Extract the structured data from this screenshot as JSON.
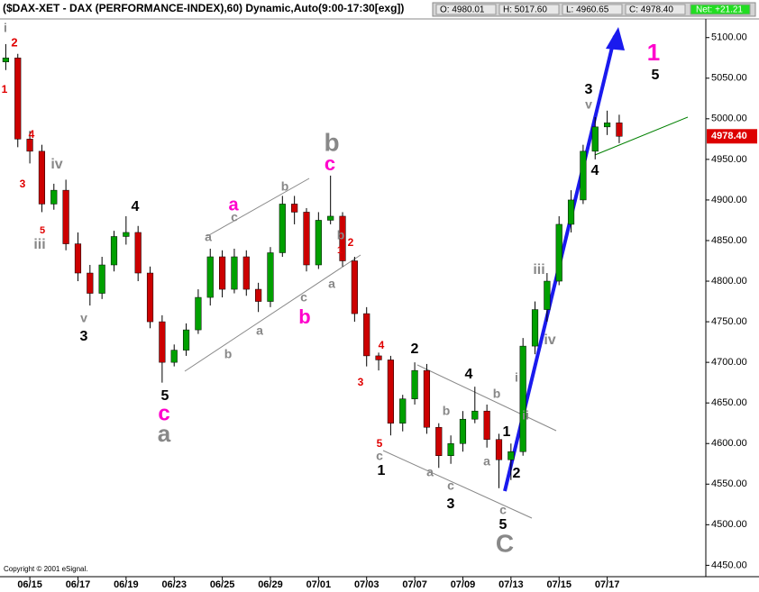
{
  "chart_data": {
    "type": "candlestick",
    "title": "($DAX-XET - DAX (PERFORMANCE-INDEX),60) Dynamic,Auto(9:00-17:30[exg])",
    "quote": {
      "open": "O: 4980.01",
      "high": "H: 5017.60",
      "low": "L: 4960.65",
      "close": "C: 4978.40",
      "net": "Net: +21.21"
    },
    "copyright": "Copyright © 2001 eSignal.",
    "last_price": {
      "value": 4978.4,
      "label": "4978.40"
    },
    "up_color": "#00a000",
    "down_color": "#cc0000",
    "wick_color": "#000000",
    "x": [
      -1,
      -0.5,
      0,
      0.5,
      1,
      1.5,
      2,
      2.5,
      3,
      3.5,
      4,
      4.5,
      5,
      5.5,
      6,
      6.5,
      7,
      7.5,
      8,
      8.5,
      9,
      9.5,
      10,
      10.5,
      11,
      11.5,
      12,
      12.5,
      13,
      13.5,
      14,
      14.5,
      15,
      15.5,
      16,
      16.5,
      17,
      17.5,
      18,
      18.5,
      19,
      19.5,
      20,
      20.5,
      21,
      21.5,
      22,
      22.5,
      23,
      23.5,
      24,
      24.5
    ],
    "open": [
      5070,
      5075,
      4975,
      4960,
      4895,
      4912,
      4846,
      4810,
      4785,
      4820,
      4855,
      4860,
      4810,
      4750,
      4700,
      4715,
      4740,
      4780,
      4830,
      4790,
      4830,
      4790,
      4775,
      4835,
      4895,
      4885,
      4820,
      4875,
      4880,
      4825,
      4760,
      4708,
      4703,
      4625,
      4655,
      4690,
      4620,
      4585,
      4600,
      4630,
      4640,
      4605,
      4580,
      4590,
      4720,
      4765,
      4800,
      4870,
      4900,
      4960,
      4990,
      4995
    ],
    "high": [
      5092,
      5080,
      4985,
      4968,
      4920,
      4925,
      4860,
      4820,
      4830,
      4862,
      4880,
      4868,
      4818,
      4758,
      4722,
      4748,
      4790,
      4840,
      4838,
      4840,
      4838,
      4798,
      4842,
      4905,
      4905,
      4890,
      4885,
      4930,
      4885,
      4830,
      4768,
      4712,
      4708,
      4660,
      4700,
      4698,
      4625,
      4610,
      4640,
      4670,
      4648,
      4612,
      4600,
      4730,
      4775,
      4810,
      4880,
      4912,
      4968,
      5002,
      5010,
      5005
    ],
    "low": [
      5060,
      4965,
      4945,
      4885,
      4888,
      4838,
      4800,
      4770,
      4778,
      4812,
      4845,
      4800,
      4742,
      4675,
      4695,
      4708,
      4735,
      4770,
      4780,
      4785,
      4782,
      4762,
      4768,
      4830,
      4870,
      4812,
      4815,
      4870,
      4818,
      4750,
      4695,
      4690,
      4610,
      4615,
      4648,
      4612,
      4570,
      4575,
      4590,
      4625,
      4595,
      4545,
      4555,
      4585,
      4710,
      4750,
      4795,
      4860,
      4895,
      4950,
      4980,
      4970
    ],
    "close": [
      5075,
      4975,
      4960,
      4895,
      4912,
      4846,
      4810,
      4785,
      4820,
      4855,
      4860,
      4810,
      4750,
      4700,
      4715,
      4740,
      4780,
      4830,
      4790,
      4830,
      4790,
      4775,
      4835,
      4895,
      4885,
      4820,
      4875,
      4880,
      4825,
      4760,
      4708,
      4703,
      4625,
      4655,
      4690,
      4620,
      4585,
      4600,
      4630,
      4640,
      4605,
      4580,
      4590,
      4720,
      4765,
      4800,
      4870,
      4900,
      4960,
      4990,
      4995,
      4978.4
    ],
    "xlim": [
      -1.24,
      28.1
    ],
    "xticks": [
      {
        "value": 0,
        "label": "06/15"
      },
      {
        "value": 2,
        "label": "06/17"
      },
      {
        "value": 4,
        "label": "06/19"
      },
      {
        "value": 6,
        "label": "06/23"
      },
      {
        "value": 8,
        "label": "06/25"
      },
      {
        "value": 10,
        "label": "06/29"
      },
      {
        "value": 12,
        "label": "07/01"
      },
      {
        "value": 14,
        "label": "07/03"
      },
      {
        "value": 16,
        "label": "07/07"
      },
      {
        "value": 18,
        "label": "07/09"
      },
      {
        "value": 20,
        "label": "07/13"
      },
      {
        "value": 22,
        "label": "07/15"
      },
      {
        "value": 24,
        "label": "07/17"
      }
    ],
    "ylim": [
      4436,
      5123
    ],
    "yticks": [
      {
        "value": 4450,
        "label": "4450.00"
      },
      {
        "value": 4500,
        "label": "4500.00"
      },
      {
        "value": 4550,
        "label": "4550.00"
      },
      {
        "value": 4600,
        "label": "4600.00"
      },
      {
        "value": 4650,
        "label": "4650.00"
      },
      {
        "value": 4700,
        "label": "4700.00"
      },
      {
        "value": 4750,
        "label": "4750.00"
      },
      {
        "value": 4800,
        "label": "4800.00"
      },
      {
        "value": 4850,
        "label": "4850.00"
      },
      {
        "value": 4900,
        "label": "4900.00"
      },
      {
        "value": 4950,
        "label": "4950.00"
      },
      {
        "value": 5000,
        "label": "5000.00"
      },
      {
        "value": 5050,
        "label": "5050.00"
      },
      {
        "value": 5100,
        "label": "5100.00"
      }
    ],
    "annotations": [
      {
        "text": "i",
        "color": "#888888"
      },
      {
        "text": "2",
        "color": "#e00000"
      },
      {
        "text": "1",
        "color": "#e00000"
      },
      {
        "text": "4",
        "color": "#e00000"
      },
      {
        "text": "3",
        "color": "#e00000"
      },
      {
        "text": "iv",
        "color": "#888888"
      },
      {
        "text": "5",
        "color": "#e00000"
      },
      {
        "text": "iii",
        "color": "#888888"
      },
      {
        "text": "4",
        "color": "#000000"
      },
      {
        "text": "v",
        "color": "#888888"
      },
      {
        "text": "3",
        "color": "#000000"
      },
      {
        "text": "5",
        "color": "#000000"
      },
      {
        "text": "c",
        "color": "#ff00cc"
      },
      {
        "text": "a",
        "color": "#888888"
      },
      {
        "text": "a",
        "color": "#ff00cc"
      },
      {
        "text": "c",
        "color": "#888888"
      },
      {
        "text": "a",
        "color": "#888888"
      },
      {
        "text": "b",
        "color": "#888888"
      },
      {
        "text": "b",
        "color": "#888888"
      },
      {
        "text": "a",
        "color": "#888888"
      },
      {
        "text": "c",
        "color": "#888888"
      },
      {
        "text": "b",
        "color": "#ff00cc"
      },
      {
        "text": "b",
        "color": "#888888"
      },
      {
        "text": "c",
        "color": "#ff00cc"
      },
      {
        "text": "b",
        "color": "#888888"
      },
      {
        "text": "2",
        "color": "#e00000"
      },
      {
        "text": "1",
        "color": "#e00000"
      },
      {
        "text": "a",
        "color": "#888888"
      },
      {
        "text": "4",
        "color": "#e00000"
      },
      {
        "text": "3",
        "color": "#e00000"
      },
      {
        "text": "5",
        "color": "#e00000"
      },
      {
        "text": "c",
        "color": "#888888"
      },
      {
        "text": "1",
        "color": "#000000"
      },
      {
        "text": "2",
        "color": "#000000"
      },
      {
        "text": "4",
        "color": "#000000"
      },
      {
        "text": "b",
        "color": "#888888"
      },
      {
        "text": "b",
        "color": "#888888"
      },
      {
        "text": "a",
        "color": "#888888"
      },
      {
        "text": "c",
        "color": "#888888"
      },
      {
        "text": "3",
        "color": "#000000"
      },
      {
        "text": "a",
        "color": "#888888"
      },
      {
        "text": "1",
        "color": "#000000"
      },
      {
        "text": "i",
        "color": "#888888"
      },
      {
        "text": "ii",
        "color": "#888888"
      },
      {
        "text": "2",
        "color": "#000000"
      },
      {
        "text": "c",
        "color": "#888888"
      },
      {
        "text": "5",
        "color": "#000000"
      },
      {
        "text": "C",
        "color": "#888888"
      },
      {
        "text": "iii",
        "color": "#888888"
      },
      {
        "text": "iv",
        "color": "#888888"
      },
      {
        "text": "3",
        "color": "#000000"
      },
      {
        "text": "v",
        "color": "#888888"
      },
      {
        "text": "4",
        "color": "#000000"
      },
      {
        "text": "1",
        "color": "#ff00cc"
      },
      {
        "text": "5",
        "color": "#000000"
      }
    ]
  }
}
